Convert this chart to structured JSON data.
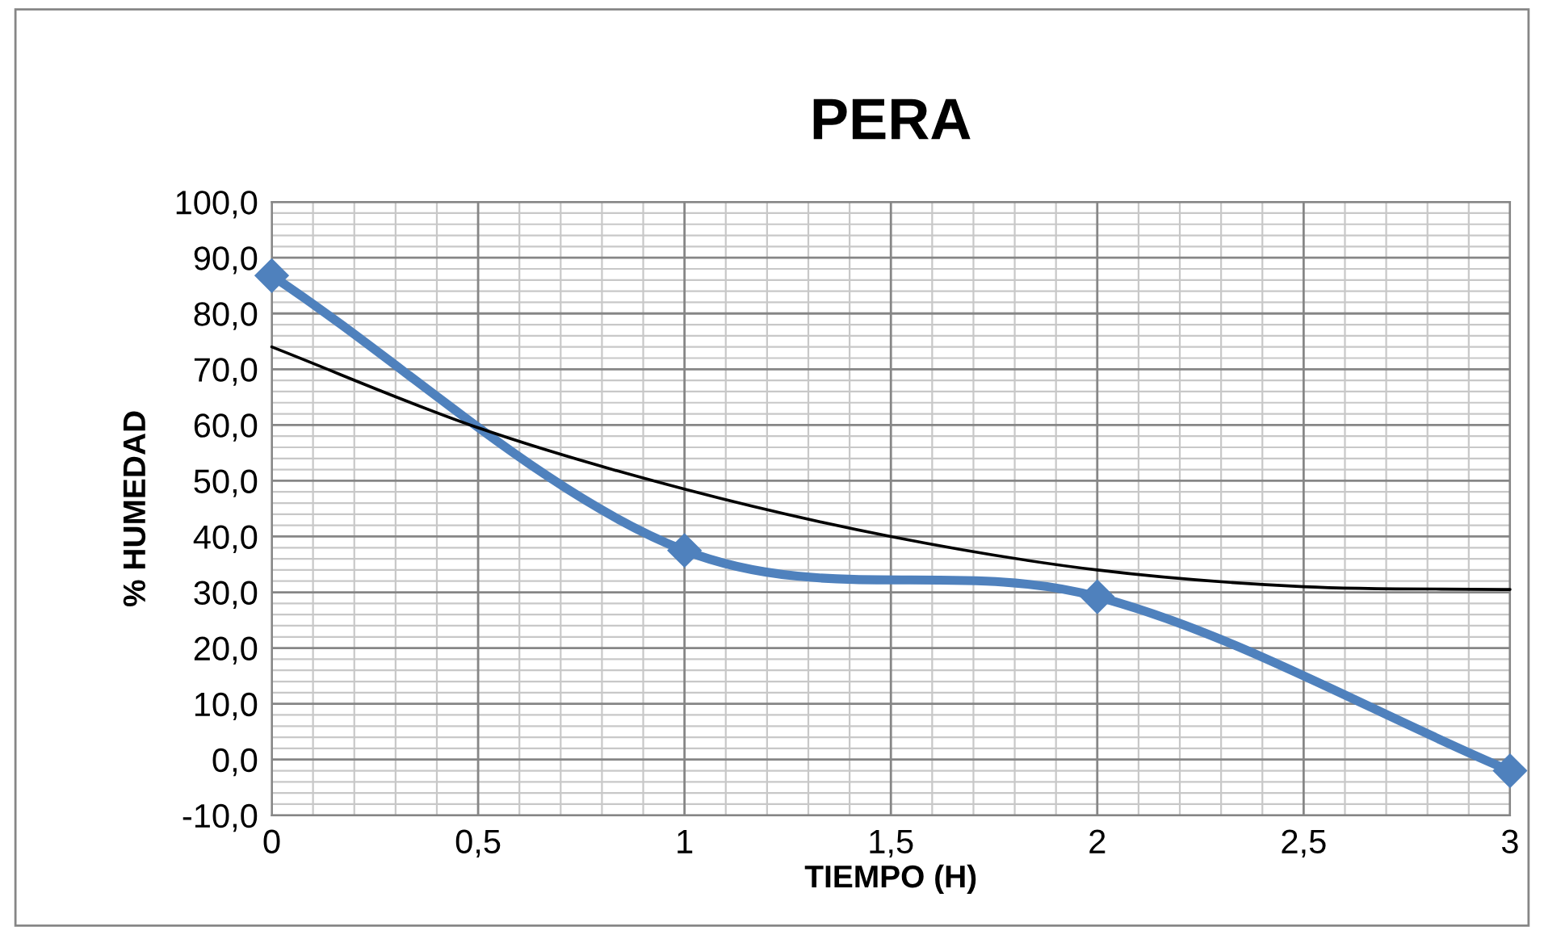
{
  "chart_data": {
    "type": "line",
    "title": "PERA",
    "xlabel": "TIEMPO (H)",
    "ylabel": "% HUMEDAD",
    "series": [
      {
        "x": [
          0,
          1,
          2,
          3
        ],
        "values": [
          86.8,
          37.5,
          29.2,
          -2.0
        ],
        "color": "#4f81bd",
        "marker": "diamond",
        "line_style": "solid"
      },
      {
        "type": "line",
        "x": [
          0,
          0.5,
          1,
          1.5,
          2,
          2.5,
          3
        ],
        "values": [
          74.0,
          59.5,
          48.5,
          40.0,
          34.0,
          31.0,
          30.5
        ],
        "color": "#000000",
        "marker": "none",
        "line_style": "solid"
      }
    ],
    "xlim": [
      0,
      3
    ],
    "xticks": [
      0,
      {
        "value": 0.5,
        "label": "0,5"
      },
      1,
      {
        "value": 1.5,
        "label": "1,5"
      },
      2,
      {
        "value": 2.5,
        "label": "2,5"
      },
      3
    ],
    "ylim": [
      -10,
      100
    ],
    "yticks": [
      {
        "value": -10,
        "label": "-10,0"
      },
      {
        "value": 0,
        "label": "0,0"
      },
      {
        "value": 10,
        "label": "10,0"
      },
      {
        "value": 20,
        "label": "20,0"
      },
      {
        "value": 30,
        "label": "30,0"
      },
      {
        "value": 40,
        "label": "40,0"
      },
      {
        "value": 50,
        "label": "50,0"
      },
      {
        "value": 60,
        "label": "60,0"
      },
      {
        "value": 70,
        "label": "70,0"
      },
      {
        "value": 80,
        "label": "80,0"
      },
      {
        "value": 90,
        "label": "90,0"
      },
      {
        "value": 100,
        "label": "100,0"
      }
    ],
    "grid": true
  }
}
